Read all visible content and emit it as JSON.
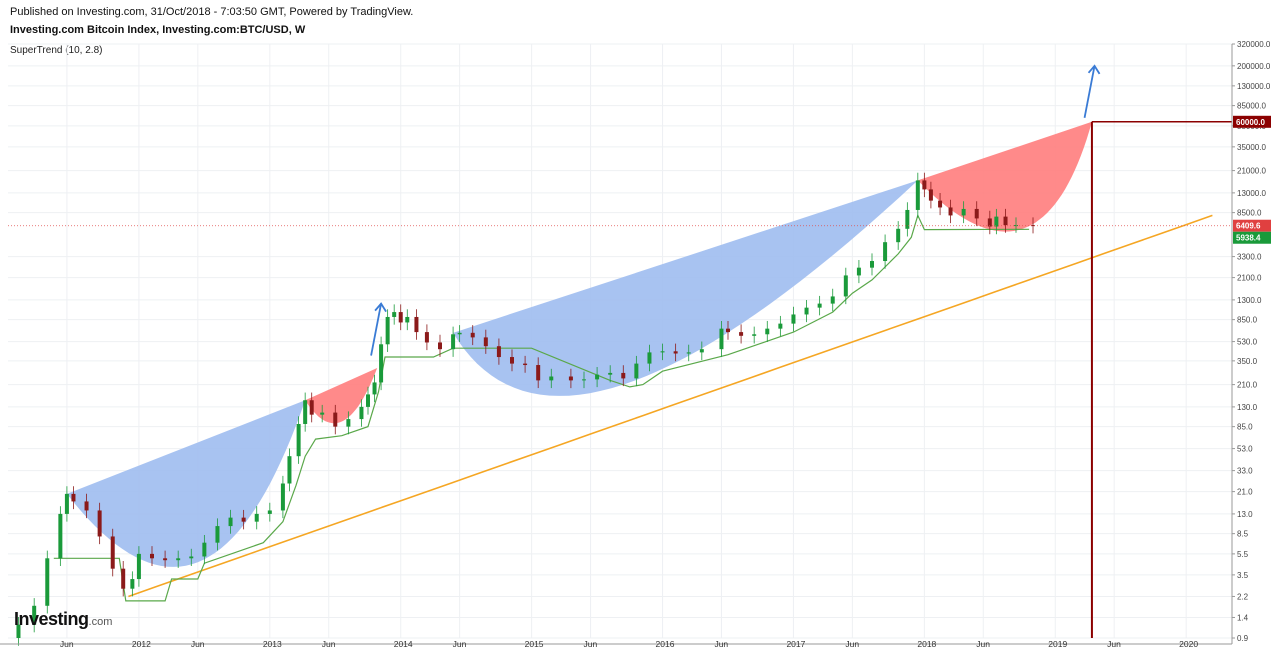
{
  "header": {
    "published": "Published on Investing.com, 31/Oct/2018 - 7:03:50 GMT, Powered by TradingView.",
    "symbol": "Investing.com Bitcoin Index, Investing.com:BTC/USD, W",
    "indicator": "SuperTrend (10, 2.8)"
  },
  "logo": {
    "brand": "Investing",
    "domain": ".com"
  },
  "colors": {
    "up": "#1a9a3a",
    "down": "#8b1a1a",
    "supertrend": "#5aa84a",
    "trendline": "#f5a623",
    "blue_fill": "#9ebcf0",
    "red_fill": "#ff7d7d",
    "arrow": "#3a7bd5",
    "vline": "#8b0000",
    "price_line": "#e05050"
  },
  "chart_data": {
    "type": "candlestick",
    "title": "Investing.com Bitcoin Index, Investing.com:BTC/USD, W",
    "y_scale": "log",
    "ylim": [
      0.9,
      320000
    ],
    "y_ticks": [
      "320000.0",
      "200000.0",
      "130000.0",
      "85000.0",
      "55000.0",
      "35000.0",
      "21000.0",
      "13000.0",
      "8500.0",
      "3300.0",
      "2100.0",
      "1300.0",
      "850.0",
      "530.0",
      "350.0",
      "210.0",
      "130.0",
      "85.0",
      "53.0",
      "33.0",
      "21.0",
      "13.0",
      "8.5",
      "5.5",
      "3.5",
      "2.2",
      "1.4",
      "0.9"
    ],
    "x_ticks": [
      "Jun",
      "2012",
      "Jun",
      "2013",
      "Jun",
      "2014",
      "Jun",
      "2015",
      "Jun",
      "2016",
      "Jun",
      "2017",
      "Jun",
      "2018",
      "Jun",
      "2019",
      "Jun",
      "2020"
    ],
    "price_labels": [
      {
        "value": "60000.0",
        "color": "#8b0000"
      },
      {
        "value": "6409.6",
        "color": "#e04040"
      },
      {
        "value": "5938.4",
        "color": "#1a9a3a"
      }
    ],
    "price_series": [
      {
        "t": 2011.0,
        "v": 0.9
      },
      {
        "t": 2011.08,
        "v": 1.2
      },
      {
        "t": 2011.2,
        "v": 1.8
      },
      {
        "t": 2011.3,
        "v": 5
      },
      {
        "t": 2011.4,
        "v": 13
      },
      {
        "t": 2011.45,
        "v": 20
      },
      {
        "t": 2011.5,
        "v": 17
      },
      {
        "t": 2011.6,
        "v": 14
      },
      {
        "t": 2011.7,
        "v": 8
      },
      {
        "t": 2011.8,
        "v": 4
      },
      {
        "t": 2011.88,
        "v": 2.6
      },
      {
        "t": 2011.95,
        "v": 3.2
      },
      {
        "t": 2012.0,
        "v": 5.5
      },
      {
        "t": 2012.1,
        "v": 5
      },
      {
        "t": 2012.2,
        "v": 4.8
      },
      {
        "t": 2012.3,
        "v": 5
      },
      {
        "t": 2012.4,
        "v": 5.2
      },
      {
        "t": 2012.5,
        "v": 7
      },
      {
        "t": 2012.6,
        "v": 10
      },
      {
        "t": 2012.7,
        "v": 12
      },
      {
        "t": 2012.8,
        "v": 11
      },
      {
        "t": 2012.9,
        "v": 13
      },
      {
        "t": 2013.0,
        "v": 14
      },
      {
        "t": 2013.1,
        "v": 25
      },
      {
        "t": 2013.15,
        "v": 45
      },
      {
        "t": 2013.22,
        "v": 90
      },
      {
        "t": 2013.27,
        "v": 150
      },
      {
        "t": 2013.32,
        "v": 110
      },
      {
        "t": 2013.4,
        "v": 115
      },
      {
        "t": 2013.5,
        "v": 85
      },
      {
        "t": 2013.6,
        "v": 100
      },
      {
        "t": 2013.7,
        "v": 130
      },
      {
        "t": 2013.75,
        "v": 170
      },
      {
        "t": 2013.8,
        "v": 220
      },
      {
        "t": 2013.85,
        "v": 500
      },
      {
        "t": 2013.9,
        "v": 900
      },
      {
        "t": 2013.95,
        "v": 1000
      },
      {
        "t": 2014.0,
        "v": 800
      },
      {
        "t": 2014.05,
        "v": 900
      },
      {
        "t": 2014.12,
        "v": 650
      },
      {
        "t": 2014.2,
        "v": 520
      },
      {
        "t": 2014.3,
        "v": 450
      },
      {
        "t": 2014.4,
        "v": 620
      },
      {
        "t": 2014.45,
        "v": 640
      },
      {
        "t": 2014.55,
        "v": 580
      },
      {
        "t": 2014.65,
        "v": 480
      },
      {
        "t": 2014.75,
        "v": 380
      },
      {
        "t": 2014.85,
        "v": 330
      },
      {
        "t": 2014.95,
        "v": 320
      },
      {
        "t": 2015.05,
        "v": 230
      },
      {
        "t": 2015.15,
        "v": 250
      },
      {
        "t": 2015.3,
        "v": 230
      },
      {
        "t": 2015.4,
        "v": 235
      },
      {
        "t": 2015.5,
        "v": 260
      },
      {
        "t": 2015.6,
        "v": 270
      },
      {
        "t": 2015.7,
        "v": 240
      },
      {
        "t": 2015.8,
        "v": 330
      },
      {
        "t": 2015.9,
        "v": 420
      },
      {
        "t": 2016.0,
        "v": 430
      },
      {
        "t": 2016.1,
        "v": 410
      },
      {
        "t": 2016.2,
        "v": 420
      },
      {
        "t": 2016.3,
        "v": 450
      },
      {
        "t": 2016.45,
        "v": 700
      },
      {
        "t": 2016.5,
        "v": 650
      },
      {
        "t": 2016.6,
        "v": 600
      },
      {
        "t": 2016.7,
        "v": 620
      },
      {
        "t": 2016.8,
        "v": 700
      },
      {
        "t": 2016.9,
        "v": 780
      },
      {
        "t": 2017.0,
        "v": 950
      },
      {
        "t": 2017.1,
        "v": 1100
      },
      {
        "t": 2017.2,
        "v": 1200
      },
      {
        "t": 2017.3,
        "v": 1400
      },
      {
        "t": 2017.4,
        "v": 2200
      },
      {
        "t": 2017.5,
        "v": 2600
      },
      {
        "t": 2017.6,
        "v": 3000
      },
      {
        "t": 2017.7,
        "v": 4500
      },
      {
        "t": 2017.8,
        "v": 6000
      },
      {
        "t": 2017.87,
        "v": 9000
      },
      {
        "t": 2017.95,
        "v": 17000
      },
      {
        "t": 2018.0,
        "v": 14000
      },
      {
        "t": 2018.05,
        "v": 11000
      },
      {
        "t": 2018.12,
        "v": 9500
      },
      {
        "t": 2018.2,
        "v": 8000
      },
      {
        "t": 2018.3,
        "v": 9200
      },
      {
        "t": 2018.4,
        "v": 7500
      },
      {
        "t": 2018.5,
        "v": 6300
      },
      {
        "t": 2018.55,
        "v": 7800
      },
      {
        "t": 2018.62,
        "v": 6500
      },
      {
        "t": 2018.7,
        "v": 6500
      },
      {
        "t": 2018.83,
        "v": 6409.6
      }
    ],
    "supertrend": [
      {
        "t": 2011.35,
        "v": 5
      },
      {
        "t": 2011.85,
        "v": 5
      },
      {
        "t": 2011.9,
        "v": 2
      },
      {
        "t": 2012.2,
        "v": 2
      },
      {
        "t": 2012.25,
        "v": 3.2
      },
      {
        "t": 2012.45,
        "v": 3.2
      },
      {
        "t": 2012.5,
        "v": 4.5
      },
      {
        "t": 2012.95,
        "v": 7
      },
      {
        "t": 2013.1,
        "v": 11
      },
      {
        "t": 2013.2,
        "v": 24
      },
      {
        "t": 2013.27,
        "v": 45
      },
      {
        "t": 2013.35,
        "v": 65
      },
      {
        "t": 2013.55,
        "v": 70
      },
      {
        "t": 2013.75,
        "v": 85
      },
      {
        "t": 2013.83,
        "v": 180
      },
      {
        "t": 2013.88,
        "v": 380
      },
      {
        "t": 2014.25,
        "v": 380
      },
      {
        "t": 2014.4,
        "v": 460
      },
      {
        "t": 2015.0,
        "v": 460
      },
      {
        "t": 2015.6,
        "v": 230
      },
      {
        "t": 2015.75,
        "v": 200
      },
      {
        "t": 2015.85,
        "v": 210
      },
      {
        "t": 2016.0,
        "v": 280
      },
      {
        "t": 2016.5,
        "v": 400
      },
      {
        "t": 2017.0,
        "v": 650
      },
      {
        "t": 2017.3,
        "v": 1000
      },
      {
        "t": 2017.45,
        "v": 1500
      },
      {
        "t": 2017.6,
        "v": 2000
      },
      {
        "t": 2017.8,
        "v": 3500
      },
      {
        "t": 2017.9,
        "v": 5000
      },
      {
        "t": 2017.95,
        "v": 8000
      },
      {
        "t": 2018.0,
        "v": 5900
      },
      {
        "t": 2018.8,
        "v": 5938.4
      }
    ],
    "trendline": {
      "t0": 2011.92,
      "v0": 2.2,
      "t1": 2020.2,
      "v1": 8000
    },
    "target": {
      "t": 2019.28,
      "v": 60000
    },
    "blue_cups": [
      {
        "start": [
          2011.45,
          20
        ],
        "end": [
          2013.27,
          150
        ],
        "bottom": [
          2012.45,
          4.6
        ]
      },
      {
        "start": [
          2014.4,
          640
        ],
        "end": [
          2017.95,
          17000
        ],
        "bottom": [
          2015.7,
          210
        ]
      }
    ],
    "red_cups": [
      {
        "start": [
          2013.27,
          150
        ],
        "end": [
          2013.82,
          300
        ],
        "bottom": [
          2013.55,
          95
        ]
      },
      {
        "start": [
          2017.95,
          17000
        ],
        "end": [
          2019.28,
          60000
        ],
        "bottom": [
          2018.75,
          6000
        ]
      }
    ],
    "arrows": [
      {
        "t": 2013.85,
        "v": 1200
      },
      {
        "t": 2019.3,
        "v": 200000
      }
    ]
  }
}
